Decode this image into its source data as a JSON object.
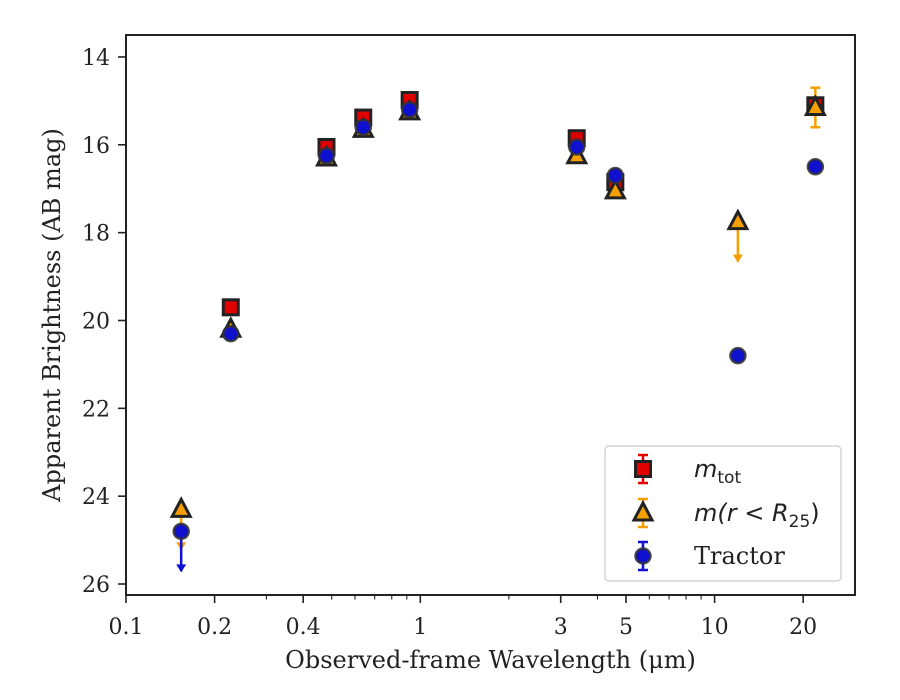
{
  "chart_data": {
    "type": "scatter",
    "xlabel": "Observed-frame Wavelength (μm)",
    "ylabel": "Apparent Brightness (AB mag)",
    "x_scale": "log",
    "xlim": [
      0.1,
      30
    ],
    "ylim": [
      26.25,
      13.5
    ],
    "y_inverted": true,
    "x_ticks": [
      0.1,
      0.2,
      0.4,
      1,
      3,
      5,
      10,
      20
    ],
    "x_tick_labels": [
      "0.1",
      "0.2",
      "0.4",
      "1",
      "3",
      "5",
      "10",
      "20"
    ],
    "y_ticks": [
      14,
      16,
      18,
      20,
      22,
      24,
      26
    ],
    "y_tick_labels": [
      "14",
      "16",
      "18",
      "20",
      "22",
      "24",
      "26"
    ],
    "grid": false,
    "legend_position": "lower-right",
    "series": [
      {
        "name_base": "m",
        "name_sub": "tot",
        "marker": "square",
        "color": "#e00000",
        "edge_color": "#222222",
        "errbar_color": "#e00000",
        "points": [
          {
            "x": 0.227,
            "y": 19.7
          },
          {
            "x": 0.48,
            "y": 16.05
          },
          {
            "x": 0.64,
            "y": 15.38
          },
          {
            "x": 0.92,
            "y": 14.98
          },
          {
            "x": 3.4,
            "y": 15.85
          },
          {
            "x": 4.6,
            "y": 16.85
          },
          {
            "x": 22.0,
            "y": 15.1
          }
        ]
      },
      {
        "name_base": "m(r < R",
        "name_sub": "25",
        "name_tail": ")",
        "marker": "triangle",
        "color": "#f5a000",
        "edge_color": "#222222",
        "errbar_color": "#f5a000",
        "points": [
          {
            "x": 0.154,
            "y": 24.3,
            "upper_limit": true
          },
          {
            "x": 0.227,
            "y": 20.2
          },
          {
            "x": 0.48,
            "y": 16.3
          },
          {
            "x": 0.64,
            "y": 15.65
          },
          {
            "x": 0.92,
            "y": 15.25
          },
          {
            "x": 3.4,
            "y": 16.25
          },
          {
            "x": 4.6,
            "y": 17.05
          },
          {
            "x": 12.0,
            "y": 17.75,
            "upper_limit": true
          },
          {
            "x": 22.0,
            "y": 15.15,
            "err": 0.45
          }
        ]
      },
      {
        "name": "Tractor",
        "marker": "circle",
        "color": "#1010d0",
        "edge_color": "#333333",
        "errbar_color": "#1010d0",
        "points": [
          {
            "x": 0.154,
            "y": 24.8,
            "upper_limit": true
          },
          {
            "x": 0.227,
            "y": 20.3
          },
          {
            "x": 0.48,
            "y": 16.25
          },
          {
            "x": 0.64,
            "y": 15.6
          },
          {
            "x": 0.92,
            "y": 15.2
          },
          {
            "x": 3.4,
            "y": 16.05
          },
          {
            "x": 4.6,
            "y": 16.7
          },
          {
            "x": 12.0,
            "y": 20.8
          },
          {
            "x": 22.0,
            "y": 16.5
          }
        ]
      }
    ]
  }
}
